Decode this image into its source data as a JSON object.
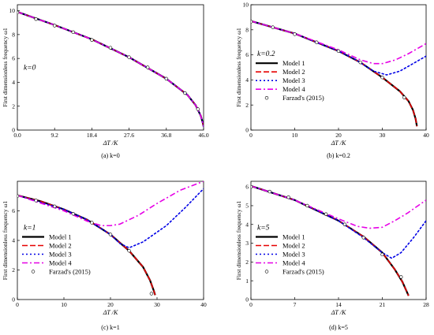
{
  "figure": {
    "legend_labels": [
      "Model 1",
      "Model 2",
      "Model 3",
      "Model 4",
      "Farzad's (2015)"
    ]
  },
  "chart_data": [
    {
      "type": "line",
      "panel_id": "a",
      "caption": "(a) k=0",
      "ylabel": "First dimensionless frequency ω1",
      "xlabel": "ΔT /K",
      "annotation": "k=0",
      "xlim": [
        0,
        46
      ],
      "ylim": [
        0,
        10.5
      ],
      "xticks": [
        0.0,
        9.2,
        18.4,
        27.6,
        36.8,
        46.0
      ],
      "xtick_labels": [
        "0.0",
        "9.2",
        "18.4",
        "27.6",
        "36.8",
        "46.0"
      ],
      "yticks": [
        0,
        2,
        4,
        6,
        8,
        10
      ],
      "ytick_labels": [
        "0",
        "2",
        "4",
        "6",
        "8",
        "10"
      ],
      "legend": null,
      "series": [
        {
          "name": "Model 1",
          "color": "#000000",
          "dash": "solid",
          "x": [
            0,
            9.2,
            18.4,
            27.6,
            36.8,
            42,
            44,
            45.3,
            45.8,
            46
          ],
          "y": [
            9.9,
            8.8,
            7.6,
            6.1,
            4.3,
            2.95,
            2.1,
            1.2,
            0.6,
            0.3
          ]
        },
        {
          "name": "Model 2",
          "color": "#e60000",
          "dash": "dashed",
          "x": [
            0,
            9.2,
            18.4,
            27.6,
            36.8,
            42,
            44,
            45.3,
            45.8,
            46
          ],
          "y": [
            9.9,
            8.8,
            7.6,
            6.1,
            4.3,
            2.95,
            2.1,
            1.2,
            0.6,
            0.3
          ]
        },
        {
          "name": "Model 3",
          "color": "#0000e6",
          "dash": "dotted",
          "x": [
            0,
            9.2,
            18.4,
            27.6,
            36.8,
            42,
            44,
            45.3,
            45.8,
            46
          ],
          "y": [
            9.9,
            8.8,
            7.6,
            6.1,
            4.3,
            2.95,
            2.1,
            1.2,
            0.6,
            0.3
          ]
        },
        {
          "name": "Model 4",
          "color": "#e600e6",
          "dash": "dashdot",
          "x": [
            0,
            9.2,
            18.4,
            27.6,
            36.8,
            42,
            44,
            45.3,
            45.8,
            46
          ],
          "y": [
            9.9,
            8.8,
            7.6,
            6.1,
            4.3,
            2.95,
            2.1,
            1.2,
            0.6,
            0.3
          ]
        },
        {
          "name": "Farzad's (2015)",
          "color": "#000000",
          "marker": "circle",
          "x": [
            0,
            4.6,
            9.2,
            13.8,
            18.4,
            23,
            27.6,
            32.2,
            36.8,
            41.4,
            44.6
          ],
          "y": [
            9.85,
            9.3,
            8.75,
            8.2,
            7.55,
            6.9,
            6.1,
            5.25,
            4.3,
            3.1,
            1.75
          ]
        }
      ]
    },
    {
      "type": "line",
      "panel_id": "b",
      "caption": "(b) k=0.2",
      "ylabel": "First dimensionless frequency ω1",
      "xlabel": "ΔT /K",
      "annotation": "k=0.2",
      "xlim": [
        0,
        40
      ],
      "ylim": [
        0,
        10
      ],
      "xticks": [
        0,
        10,
        20,
        30,
        40
      ],
      "xtick_labels": [
        "0",
        "10",
        "20",
        "30",
        "40"
      ],
      "yticks": [
        0,
        2,
        4,
        6,
        8,
        10
      ],
      "ytick_labels": [
        "0",
        "2",
        "4",
        "6",
        "8",
        "10"
      ],
      "legend": "center-left",
      "series": [
        {
          "name": "Model 1",
          "color": "#000000",
          "dash": "solid",
          "x": [
            0,
            10,
            20,
            25,
            30,
            34,
            36,
            37,
            37.6,
            37.9
          ],
          "y": [
            8.7,
            7.7,
            6.3,
            5.4,
            4.2,
            3.1,
            2.3,
            1.6,
            0.9,
            0.3
          ]
        },
        {
          "name": "Model 2",
          "color": "#e60000",
          "dash": "dashed",
          "x": [
            0,
            10,
            20,
            25,
            30,
            34,
            36,
            37,
            37.6,
            37.9
          ],
          "y": [
            8.7,
            7.7,
            6.3,
            5.4,
            4.2,
            3.1,
            2.3,
            1.6,
            0.9,
            0.3
          ]
        },
        {
          "name": "Model 3",
          "color": "#0000e6",
          "dash": "dotted",
          "x": [
            0,
            10,
            20,
            24,
            28,
            31,
            34,
            37,
            40
          ],
          "y": [
            8.7,
            7.7,
            6.3,
            5.6,
            4.7,
            4.4,
            4.7,
            5.3,
            5.9
          ]
        },
        {
          "name": "Model 4",
          "color": "#e600e6",
          "dash": "dashdot",
          "x": [
            0,
            10,
            20,
            25,
            28,
            30,
            33,
            36,
            40
          ],
          "y": [
            8.7,
            7.7,
            6.4,
            5.6,
            5.3,
            5.3,
            5.6,
            6.1,
            6.9
          ]
        },
        {
          "name": "Farzad's (2015)",
          "color": "#000000",
          "marker": "circle",
          "x": [
            0,
            5,
            10,
            15,
            20,
            25,
            30,
            35
          ],
          "y": [
            8.65,
            8.2,
            7.65,
            7.0,
            6.3,
            5.4,
            4.2,
            2.6
          ]
        }
      ]
    },
    {
      "type": "line",
      "panel_id": "c",
      "caption": "(c) k=1",
      "ylabel": "First dimensionless frequency ω1",
      "xlabel": "ΔT /K",
      "annotation": "k=1",
      "xlim": [
        0,
        40
      ],
      "ylim": [
        0,
        8
      ],
      "xticks": [
        0,
        10,
        20,
        30,
        40
      ],
      "xtick_labels": [
        "0",
        "10",
        "20",
        "30",
        "40"
      ],
      "yticks": [
        0,
        2,
        4,
        6
      ],
      "ytick_labels": [
        "0",
        "2",
        "4",
        "6"
      ],
      "legend": "center-left",
      "series": [
        {
          "name": "Model 1",
          "color": "#000000",
          "dash": "solid",
          "x": [
            0,
            5,
            10,
            15,
            20,
            24,
            27,
            28.5,
            29.3,
            29.6
          ],
          "y": [
            7.05,
            6.65,
            6.1,
            5.4,
            4.4,
            3.3,
            2.2,
            1.3,
            0.6,
            0.3
          ]
        },
        {
          "name": "Model 2",
          "color": "#e60000",
          "dash": "dashed",
          "x": [
            0,
            5,
            10,
            15,
            20,
            24,
            27,
            28.5,
            29.3,
            29.6
          ],
          "y": [
            7.05,
            6.65,
            6.1,
            5.4,
            4.4,
            3.3,
            2.2,
            1.3,
            0.6,
            0.3
          ]
        },
        {
          "name": "Model 3",
          "color": "#0000e6",
          "dash": "dotted",
          "x": [
            0,
            10,
            15,
            20,
            22,
            24,
            27,
            32,
            36,
            40
          ],
          "y": [
            7.05,
            6.1,
            5.4,
            4.4,
            3.8,
            3.5,
            3.9,
            5.0,
            6.2,
            7.5
          ]
        },
        {
          "name": "Model 4",
          "color": "#e600e6",
          "dash": "dashdot",
          "x": [
            0,
            10,
            15,
            18,
            20,
            22,
            26,
            30,
            35,
            40
          ],
          "y": [
            7.05,
            6.0,
            5.3,
            5.0,
            5.0,
            5.1,
            5.7,
            6.5,
            7.4,
            8.0
          ]
        },
        {
          "name": "Farzad's (2015)",
          "color": "#000000",
          "marker": "circle",
          "x": [
            0,
            4,
            8,
            12,
            16,
            20,
            24,
            28.8
          ],
          "y": [
            7.0,
            6.7,
            6.3,
            5.8,
            5.2,
            4.4,
            3.3,
            0.4
          ]
        }
      ]
    },
    {
      "type": "line",
      "panel_id": "d",
      "caption": "(d) k=5",
      "ylabel": "First dimensionless frequency ω1",
      "xlabel": "ΔT /K",
      "annotation": "k=5",
      "xlim": [
        0,
        28
      ],
      "ylim": [
        0,
        6.3
      ],
      "xticks": [
        0,
        7,
        14,
        21,
        28
      ],
      "xtick_labels": [
        "0",
        "7",
        "14",
        "21",
        "28"
      ],
      "yticks": [
        0,
        1,
        2,
        3,
        4,
        5,
        6
      ],
      "ytick_labels": [
        "0",
        "1",
        "2",
        "3",
        "4",
        "5",
        "6"
      ],
      "legend": "center-left",
      "series": [
        {
          "name": "Model 1",
          "color": "#000000",
          "dash": "solid",
          "x": [
            0,
            7,
            14,
            18,
            21,
            23,
            24.2,
            24.8,
            25.2
          ],
          "y": [
            6.05,
            5.3,
            4.2,
            3.35,
            2.5,
            1.6,
            0.95,
            0.5,
            0.2
          ]
        },
        {
          "name": "Model 2",
          "color": "#e60000",
          "dash": "dashed",
          "x": [
            0,
            7,
            14,
            18,
            21,
            23,
            24.2,
            24.8,
            25.2
          ],
          "y": [
            6.05,
            5.3,
            4.2,
            3.35,
            2.5,
            1.6,
            0.95,
            0.5,
            0.2
          ]
        },
        {
          "name": "Model 3",
          "color": "#0000e6",
          "dash": "dotted",
          "x": [
            0,
            7,
            14,
            18,
            21,
            22.5,
            24,
            26,
            28
          ],
          "y": [
            6.05,
            5.3,
            4.2,
            3.3,
            2.5,
            2.2,
            2.5,
            3.3,
            4.2
          ]
        },
        {
          "name": "Model 4",
          "color": "#e600e6",
          "dash": "dashdot",
          "x": [
            0,
            7,
            14,
            17,
            19,
            21,
            23,
            25,
            28
          ],
          "y": [
            6.05,
            5.3,
            4.3,
            3.9,
            3.8,
            3.85,
            4.2,
            4.6,
            5.3
          ]
        },
        {
          "name": "Farzad's (2015)",
          "color": "#000000",
          "marker": "circle",
          "x": [
            0,
            3,
            6,
            9,
            12,
            15,
            18,
            21,
            24
          ],
          "y": [
            6.0,
            5.75,
            5.45,
            5.0,
            4.55,
            4.0,
            3.3,
            2.4,
            1.2
          ]
        }
      ]
    }
  ]
}
